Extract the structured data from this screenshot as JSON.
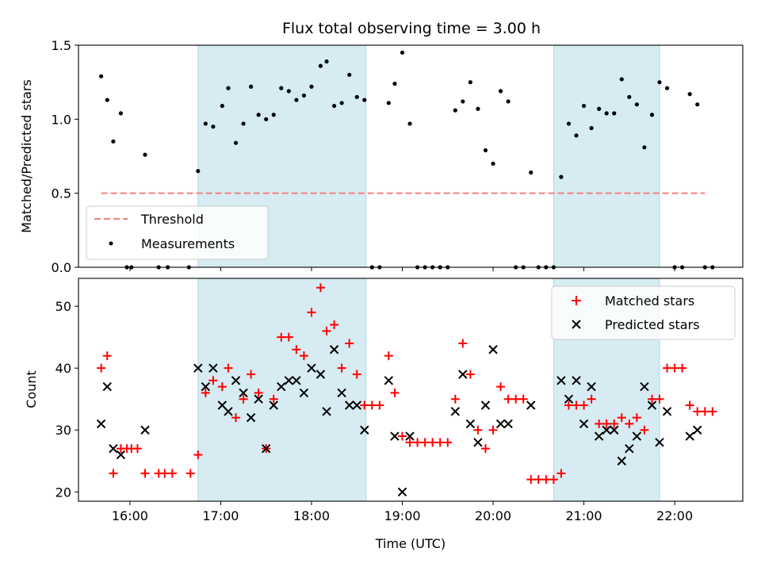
{
  "title": "Flux total observing time = 3.00 h",
  "colors": {
    "shade": "#add8e6",
    "threshold": "#f08080",
    "measurement": "#000000",
    "matched": "#ff0000",
    "predicted": "#000000"
  },
  "chart_data": [
    {
      "type": "scatter",
      "title": "Flux total observing time = 3.00 h",
      "xlabel": "",
      "ylabel": "Matched/Predicted stars",
      "xlim": [
        "15:26",
        "22:45"
      ],
      "ylim": [
        0,
        1.5
      ],
      "yticks": [
        "0.0",
        "0.5",
        "1.0",
        "1.5"
      ],
      "xticks": [
        "16:00",
        "17:00",
        "18:00",
        "19:00",
        "20:00",
        "21:00",
        "22:00"
      ],
      "shaded_intervals": [
        [
          "16:45",
          "18:36"
        ],
        [
          "20:40",
          "21:50"
        ]
      ],
      "threshold": {
        "label": "Threshold",
        "value": 0.5,
        "x_start": "15:41",
        "x_end": "22:20"
      },
      "legend": {
        "position": "lower-left",
        "entries": [
          "Threshold",
          "Measurements"
        ]
      },
      "series": [
        {
          "name": "Measurements",
          "points": [
            [
              "15:41",
              1.29
            ],
            [
              "15:45",
              1.13
            ],
            [
              "15:49",
              0.85
            ],
            [
              "15:54",
              1.04
            ],
            [
              "15:58",
              0
            ],
            [
              "16:01",
              0
            ],
            [
              "16:10",
              0.76
            ],
            [
              "16:19",
              0
            ],
            [
              "16:25",
              0
            ],
            [
              "16:39",
              0
            ],
            [
              "16:45",
              0.65
            ],
            [
              "16:50",
              0.97
            ],
            [
              "16:55",
              0.95
            ],
            [
              "17:01",
              1.09
            ],
            [
              "17:05",
              1.21
            ],
            [
              "17:10",
              0.84
            ],
            [
              "17:15",
              0.97
            ],
            [
              "17:20",
              1.22
            ],
            [
              "17:25",
              1.03
            ],
            [
              "17:30",
              1.0
            ],
            [
              "17:35",
              1.03
            ],
            [
              "17:40",
              1.21
            ],
            [
              "17:45",
              1.19
            ],
            [
              "17:50",
              1.13
            ],
            [
              "17:55",
              1.16
            ],
            [
              "18:00",
              1.22
            ],
            [
              "18:06",
              1.36
            ],
            [
              "18:10",
              1.39
            ],
            [
              "18:15",
              1.09
            ],
            [
              "18:20",
              1.11
            ],
            [
              "18:25",
              1.3
            ],
            [
              "18:30",
              1.15
            ],
            [
              "18:35",
              1.13
            ],
            [
              "18:40",
              0
            ],
            [
              "18:45",
              0
            ],
            [
              "18:51",
              1.11
            ],
            [
              "18:55",
              1.24
            ],
            [
              "19:00",
              1.45
            ],
            [
              "19:05",
              0.97
            ],
            [
              "19:10",
              0
            ],
            [
              "19:15",
              0
            ],
            [
              "19:20",
              0
            ],
            [
              "19:25",
              0
            ],
            [
              "19:30",
              0
            ],
            [
              "19:35",
              1.06
            ],
            [
              "19:40",
              1.12
            ],
            [
              "19:45",
              1.25
            ],
            [
              "19:50",
              1.07
            ],
            [
              "19:55",
              0.79
            ],
            [
              "20:00",
              0.7
            ],
            [
              "20:05",
              1.19
            ],
            [
              "20:10",
              1.12
            ],
            [
              "20:15",
              0
            ],
            [
              "20:20",
              0
            ],
            [
              "20:25",
              0.64
            ],
            [
              "20:30",
              0
            ],
            [
              "20:35",
              0
            ],
            [
              "20:40",
              0
            ],
            [
              "20:45",
              0.61
            ],
            [
              "20:50",
              0.97
            ],
            [
              "20:55",
              0.89
            ],
            [
              "21:00",
              1.09
            ],
            [
              "21:05",
              0.94
            ],
            [
              "21:10",
              1.07
            ],
            [
              "21:15",
              1.04
            ],
            [
              "21:20",
              1.04
            ],
            [
              "21:25",
              1.27
            ],
            [
              "21:30",
              1.15
            ],
            [
              "21:35",
              1.1
            ],
            [
              "21:40",
              0.81
            ],
            [
              "21:45",
              1.03
            ],
            [
              "21:50",
              1.25
            ],
            [
              "21:55",
              1.21
            ],
            [
              "22:00",
              0
            ],
            [
              "22:05",
              0
            ],
            [
              "22:10",
              1.17
            ],
            [
              "22:15",
              1.1
            ],
            [
              "22:20",
              0
            ],
            [
              "22:25",
              0
            ]
          ]
        }
      ]
    },
    {
      "type": "scatter",
      "title": "",
      "xlabel": "Time (UTC)",
      "ylabel": "Count",
      "xlim": [
        "15:26",
        "22:45"
      ],
      "ylim": [
        18.5,
        54.5
      ],
      "yticks": [
        "20",
        "30",
        "40",
        "50"
      ],
      "xticks": [
        "16:00",
        "17:00",
        "18:00",
        "19:00",
        "20:00",
        "21:00",
        "22:00"
      ],
      "shaded_intervals": [
        [
          "16:45",
          "18:36"
        ],
        [
          "20:40",
          "21:50"
        ]
      ],
      "legend": {
        "position": "top-right",
        "entries": [
          "Matched stars",
          "Predicted stars"
        ]
      },
      "series": [
        {
          "name": "Matched stars",
          "points": [
            [
              "15:41",
              40
            ],
            [
              "15:45",
              42
            ],
            [
              "15:49",
              23
            ],
            [
              "15:54",
              27
            ],
            [
              "15:58",
              27
            ],
            [
              "16:01",
              27
            ],
            [
              "16:05",
              27
            ],
            [
              "16:10",
              23
            ],
            [
              "16:19",
              23
            ],
            [
              "16:23",
              23
            ],
            [
              "16:28",
              23
            ],
            [
              "16:40",
              23
            ],
            [
              "16:45",
              26
            ],
            [
              "16:50",
              36
            ],
            [
              "16:55",
              38
            ],
            [
              "17:01",
              37
            ],
            [
              "17:05",
              40
            ],
            [
              "17:10",
              32
            ],
            [
              "17:15",
              35
            ],
            [
              "17:20",
              39
            ],
            [
              "17:25",
              36
            ],
            [
              "17:30",
              27
            ],
            [
              "17:35",
              35
            ],
            [
              "17:40",
              45
            ],
            [
              "17:45",
              45
            ],
            [
              "17:50",
              43
            ],
            [
              "17:55",
              42
            ],
            [
              "18:00",
              49
            ],
            [
              "18:06",
              53
            ],
            [
              "18:10",
              46
            ],
            [
              "18:15",
              47
            ],
            [
              "18:20",
              40
            ],
            [
              "18:25",
              44
            ],
            [
              "18:30",
              39
            ],
            [
              "18:35",
              34
            ],
            [
              "18:40",
              34
            ],
            [
              "18:45",
              34
            ],
            [
              "18:51",
              42
            ],
            [
              "18:55",
              36
            ],
            [
              "19:00",
              29
            ],
            [
              "19:05",
              28
            ],
            [
              "19:10",
              28
            ],
            [
              "19:15",
              28
            ],
            [
              "19:20",
              28
            ],
            [
              "19:25",
              28
            ],
            [
              "19:30",
              28
            ],
            [
              "19:35",
              35
            ],
            [
              "19:40",
              44
            ],
            [
              "19:45",
              39
            ],
            [
              "19:50",
              30
            ],
            [
              "19:55",
              27
            ],
            [
              "20:00",
              30
            ],
            [
              "20:05",
              37
            ],
            [
              "20:10",
              35
            ],
            [
              "20:15",
              35
            ],
            [
              "20:20",
              35
            ],
            [
              "20:25",
              22
            ],
            [
              "20:30",
              22
            ],
            [
              "20:35",
              22
            ],
            [
              "20:40",
              22
            ],
            [
              "20:45",
              23
            ],
            [
              "20:50",
              34
            ],
            [
              "20:55",
              34
            ],
            [
              "21:00",
              34
            ],
            [
              "21:05",
              35
            ],
            [
              "21:10",
              31
            ],
            [
              "21:15",
              31
            ],
            [
              "21:20",
              31
            ],
            [
              "21:25",
              32
            ],
            [
              "21:30",
              31
            ],
            [
              "21:35",
              32
            ],
            [
              "21:40",
              30
            ],
            [
              "21:45",
              35
            ],
            [
              "21:50",
              35
            ],
            [
              "21:55",
              40
            ],
            [
              "22:00",
              40
            ],
            [
              "22:05",
              40
            ],
            [
              "22:10",
              34
            ],
            [
              "22:15",
              33
            ],
            [
              "22:20",
              33
            ],
            [
              "22:25",
              33
            ]
          ]
        },
        {
          "name": "Predicted stars",
          "points": [
            [
              "15:41",
              31
            ],
            [
              "15:45",
              37
            ],
            [
              "15:49",
              27
            ],
            [
              "15:54",
              26
            ],
            [
              "16:10",
              30
            ],
            [
              "16:45",
              40
            ],
            [
              "16:50",
              37
            ],
            [
              "16:55",
              40
            ],
            [
              "17:01",
              34
            ],
            [
              "17:05",
              33
            ],
            [
              "17:10",
              38
            ],
            [
              "17:15",
              36
            ],
            [
              "17:20",
              32
            ],
            [
              "17:25",
              35
            ],
            [
              "17:30",
              27
            ],
            [
              "17:35",
              34
            ],
            [
              "17:40",
              37
            ],
            [
              "17:45",
              38
            ],
            [
              "17:50",
              38
            ],
            [
              "17:55",
              36
            ],
            [
              "18:00",
              40
            ],
            [
              "18:06",
              39
            ],
            [
              "18:10",
              33
            ],
            [
              "18:15",
              43
            ],
            [
              "18:20",
              36
            ],
            [
              "18:25",
              34
            ],
            [
              "18:30",
              34
            ],
            [
              "18:35",
              30
            ],
            [
              "18:51",
              38
            ],
            [
              "18:55",
              29
            ],
            [
              "19:00",
              20
            ],
            [
              "19:05",
              29
            ],
            [
              "19:35",
              33
            ],
            [
              "19:40",
              39
            ],
            [
              "19:45",
              31
            ],
            [
              "19:50",
              28
            ],
            [
              "19:55",
              34
            ],
            [
              "20:00",
              43
            ],
            [
              "20:05",
              31
            ],
            [
              "20:10",
              31
            ],
            [
              "20:25",
              34
            ],
            [
              "20:45",
              38
            ],
            [
              "20:50",
              35
            ],
            [
              "20:55",
              38
            ],
            [
              "21:00",
              31
            ],
            [
              "21:05",
              37
            ],
            [
              "21:10",
              29
            ],
            [
              "21:15",
              30
            ],
            [
              "21:20",
              30
            ],
            [
              "21:25",
              25
            ],
            [
              "21:30",
              27
            ],
            [
              "21:35",
              29
            ],
            [
              "21:40",
              37
            ],
            [
              "21:45",
              34
            ],
            [
              "21:50",
              28
            ],
            [
              "21:55",
              33
            ],
            [
              "22:10",
              29
            ],
            [
              "22:15",
              30
            ]
          ]
        }
      ]
    }
  ]
}
